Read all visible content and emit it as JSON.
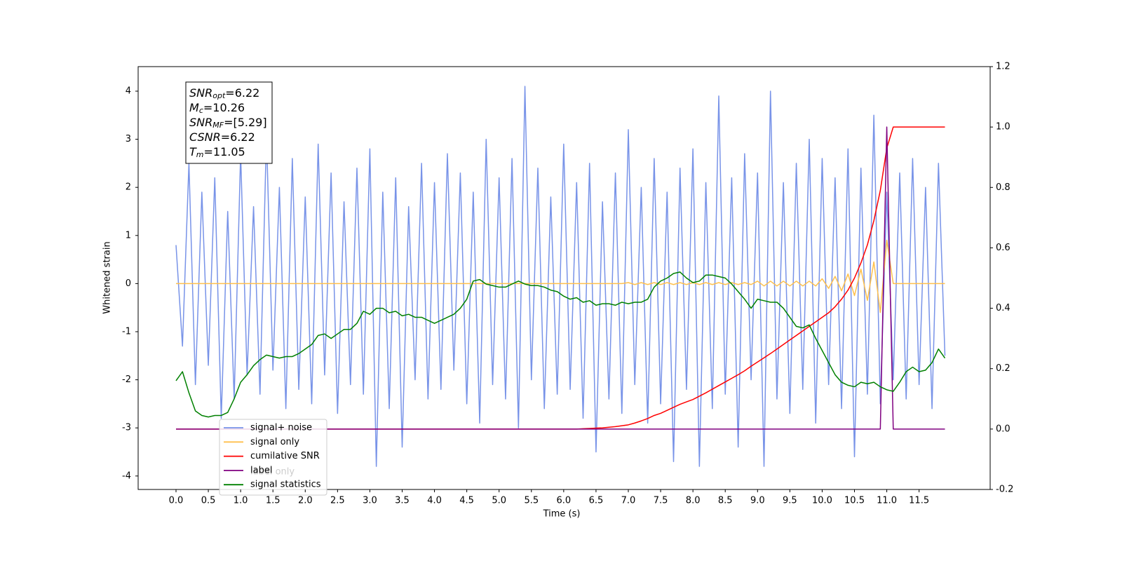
{
  "chart_data": {
    "type": "line",
    "xlabel": "Time (s)",
    "ylabel": "Whitened strain",
    "xlim": [
      -0.586,
      12.6
    ],
    "ylim": [
      -4.28,
      4.51
    ],
    "y2lim": [
      -0.2,
      1.2
    ],
    "xticks": [
      {
        "value": 0,
        "label": "0.0"
      },
      0.5,
      {
        "value": 1,
        "label": "1.0"
      },
      1.5,
      {
        "value": 2,
        "label": "2.0"
      },
      2.5,
      {
        "value": 3,
        "label": "3.0"
      },
      3.5,
      {
        "value": 4,
        "label": "4.0"
      },
      4.5,
      {
        "value": 5,
        "label": "5.0"
      },
      5.5,
      {
        "value": 6,
        "label": "6.0"
      },
      6.5,
      {
        "value": 7,
        "label": "7.0"
      },
      7.5,
      {
        "value": 8,
        "label": "8.0"
      },
      8.5,
      {
        "value": 9,
        "label": "9.0"
      },
      9.5,
      {
        "value": 10,
        "label": "10.0"
      },
      10.5,
      {
        "value": 11,
        "label": "11.0"
      },
      11.5
    ],
    "yticks": [
      -4,
      -3,
      -2,
      -1,
      0,
      1,
      2,
      3,
      4
    ],
    "y2ticks": [
      -0.2,
      {
        "value": 0,
        "label": "0.0"
      },
      0.2,
      0.4,
      0.6,
      0.8,
      {
        "value": 1,
        "label": "1.0"
      },
      1.2
    ],
    "x": [
      0,
      0.1,
      0.2,
      0.3,
      0.4,
      0.5,
      0.6,
      0.7,
      0.8,
      0.9,
      1,
      1.1,
      1.2,
      1.3,
      1.4,
      1.5,
      1.6,
      1.7,
      1.8,
      1.9,
      2,
      2.1,
      2.2,
      2.3,
      2.4,
      2.5,
      2.6,
      2.7,
      2.8,
      2.9,
      3,
      3.1,
      3.2,
      3.3,
      3.4,
      3.5,
      3.6,
      3.7,
      3.8,
      3.9,
      4,
      4.1,
      4.2,
      4.3,
      4.4,
      4.5,
      4.6,
      4.7,
      4.8,
      4.9,
      5,
      5.1,
      5.2,
      5.3,
      5.4,
      5.5,
      5.6,
      5.7,
      5.8,
      5.9,
      6,
      6.1,
      6.2,
      6.3,
      6.4,
      6.5,
      6.6,
      6.7,
      6.8,
      6.9,
      7,
      7.1,
      7.2,
      7.3,
      7.4,
      7.5,
      7.6,
      7.7,
      7.8,
      7.9,
      8,
      8.1,
      8.2,
      8.3,
      8.4,
      8.5,
      8.6,
      8.7,
      8.8,
      8.9,
      9,
      9.1,
      9.2,
      9.3,
      9.4,
      9.5,
      9.6,
      9.7,
      9.8,
      9.9,
      10,
      10.1,
      10.2,
      10.3,
      10.4,
      10.5,
      10.6,
      10.7,
      10.8,
      10.9,
      11,
      11.1,
      11.2,
      11.3,
      11.4,
      11.5,
      11.6,
      11.7,
      11.8,
      11.9
    ],
    "series": [
      {
        "name": "signal+ noise",
        "color": "#7893e8",
        "axis": "y",
        "values": [
          0.8,
          -1.3,
          2.5,
          -2.1,
          1.9,
          -1.7,
          2.2,
          -2.8,
          1.5,
          -2.4,
          2.7,
          -1.9,
          1.6,
          -2.3,
          3.1,
          -1.8,
          2.0,
          -2.6,
          2.6,
          -2.2,
          1.8,
          -2.5,
          2.9,
          -1.9,
          2.3,
          -2.7,
          1.7,
          -2.1,
          2.4,
          -2.3,
          2.8,
          -3.8,
          1.9,
          -2.6,
          2.2,
          -3.4,
          1.6,
          -2.0,
          2.5,
          -2.4,
          2.1,
          -2.2,
          2.7,
          -1.8,
          2.3,
          -2.5,
          1.9,
          -2.9,
          3.0,
          -2.1,
          2.2,
          -2.4,
          2.6,
          -3.0,
          4.1,
          -2.0,
          2.4,
          -2.6,
          1.8,
          -2.3,
          2.9,
          -2.2,
          2.1,
          -2.8,
          2.5,
          -3.5,
          1.7,
          -2.4,
          2.3,
          -2.7,
          3.2,
          -2.1,
          2.0,
          -2.9,
          2.6,
          -2.5,
          1.9,
          -3.7,
          2.4,
          -2.2,
          2.8,
          -3.8,
          2.1,
          -2.6,
          3.9,
          -2.3,
          2.2,
          -3.4,
          2.7,
          -2.0,
          2.3,
          -3.8,
          4.0,
          -2.4,
          2.1,
          -2.7,
          2.5,
          -2.2,
          3.0,
          -2.9,
          2.6,
          -2.1,
          2.2,
          -2.6,
          2.8,
          -3.6,
          2.4,
          -2.3,
          3.5,
          -2.5,
          1.9,
          -2.0,
          2.3,
          -2.4,
          2.6,
          -2.1,
          2.0,
          -2.6,
          2.5,
          -1.5
        ]
      },
      {
        "name": "signal only",
        "color": "#ffc04d",
        "axis": "y",
        "values": [
          0,
          0,
          0,
          0,
          0,
          0,
          0,
          0,
          0,
          0,
          0,
          0,
          0,
          0,
          0,
          0,
          0,
          0,
          0,
          0,
          0,
          0,
          0,
          0,
          0,
          0,
          0,
          0,
          0,
          0,
          0,
          0,
          0,
          0,
          0,
          0,
          0,
          0,
          0,
          0,
          0,
          0,
          0,
          0,
          0,
          0,
          0,
          0,
          0,
          0,
          0,
          0,
          0,
          0,
          0,
          0,
          0,
          0,
          0,
          0,
          0,
          0,
          0,
          0,
          0,
          0,
          0,
          0,
          0,
          0,
          0.02,
          -0.02,
          0.02,
          -0.02,
          0.02,
          -0.02,
          0.02,
          -0.02,
          0.02,
          -0.02,
          0.02,
          -0.02,
          0.02,
          -0.02,
          0.02,
          -0.02,
          0.02,
          -0.02,
          0.02,
          -0.02,
          0.05,
          -0.05,
          0.05,
          -0.05,
          0.05,
          -0.05,
          0.05,
          -0.05,
          0.05,
          -0.05,
          0.1,
          -0.1,
          0.15,
          -0.15,
          0.2,
          -0.25,
          0.3,
          -0.35,
          0.45,
          -0.6,
          0.9,
          0,
          0,
          0,
          0,
          0,
          0,
          0,
          0,
          0
        ]
      },
      {
        "name": "cumilative SNR",
        "color": "#ff0000",
        "axis": "y2",
        "values": [
          0,
          0,
          0,
          0,
          0,
          0,
          0,
          0,
          0,
          0,
          0,
          0,
          0,
          0,
          0,
          0,
          0,
          0,
          0,
          0,
          0,
          0,
          0,
          0,
          0,
          0,
          0,
          0,
          0,
          0,
          0,
          0,
          0,
          0,
          0,
          0,
          0,
          0,
          0,
          0,
          0,
          0,
          0,
          0,
          0,
          0,
          0,
          0,
          0,
          0,
          0,
          0,
          0,
          0,
          0,
          0,
          0,
          0,
          0,
          0,
          0,
          0,
          0,
          0.001,
          0.002,
          0.003,
          0.004,
          0.006,
          0.008,
          0.011,
          0.014,
          0.02,
          0.027,
          0.035,
          0.045,
          0.052,
          0.062,
          0.072,
          0.082,
          0.09,
          0.098,
          0.109,
          0.12,
          0.132,
          0.144,
          0.156,
          0.168,
          0.18,
          0.193,
          0.208,
          0.222,
          0.236,
          0.25,
          0.265,
          0.28,
          0.295,
          0.31,
          0.325,
          0.34,
          0.355,
          0.37,
          0.385,
          0.405,
          0.43,
          0.46,
          0.5,
          0.55,
          0.61,
          0.69,
          0.79,
          0.93,
          1,
          1,
          1,
          1,
          1,
          1,
          1,
          1,
          1
        ]
      },
      {
        "name": "label",
        "color": "#800080",
        "axis": "y2",
        "values": [
          0,
          0,
          0,
          0,
          0,
          0,
          0,
          0,
          0,
          0,
          0,
          0,
          0,
          0,
          0,
          0,
          0,
          0,
          0,
          0,
          0,
          0,
          0,
          0,
          0,
          0,
          0,
          0,
          0,
          0,
          0,
          0,
          0,
          0,
          0,
          0,
          0,
          0,
          0,
          0,
          0,
          0,
          0,
          0,
          0,
          0,
          0,
          0,
          0,
          0,
          0,
          0,
          0,
          0,
          0,
          0,
          0,
          0,
          0,
          0,
          0,
          0,
          0,
          0,
          0,
          0,
          0,
          0,
          0,
          0,
          0,
          0,
          0,
          0,
          0,
          0,
          0,
          0,
          0,
          0,
          0,
          0,
          0,
          0,
          0,
          0,
          0,
          0,
          0,
          0,
          0,
          0,
          0,
          0,
          0,
          0,
          0,
          0,
          0,
          0,
          0,
          0,
          0,
          0,
          0,
          0,
          0,
          0,
          0,
          0,
          1,
          0,
          0,
          0,
          0,
          0,
          0,
          0,
          0,
          0
        ]
      },
      {
        "name": "signal statistics",
        "color": "#008000",
        "axis": "y2",
        "values": [
          0.16,
          0.19,
          0.12,
          0.06,
          0.045,
          0.04,
          0.045,
          0.045,
          0.055,
          0.1,
          0.155,
          0.18,
          0.21,
          0.23,
          0.245,
          0.24,
          0.235,
          0.24,
          0.24,
          0.25,
          0.265,
          0.28,
          0.31,
          0.315,
          0.3,
          0.315,
          0.33,
          0.33,
          0.35,
          0.39,
          0.38,
          0.4,
          0.4,
          0.385,
          0.39,
          0.375,
          0.38,
          0.37,
          0.37,
          0.36,
          0.35,
          0.36,
          0.37,
          0.38,
          0.4,
          0.43,
          0.49,
          0.495,
          0.48,
          0.475,
          0.47,
          0.47,
          0.48,
          0.49,
          0.48,
          0.475,
          0.475,
          0.47,
          0.46,
          0.455,
          0.44,
          0.43,
          0.435,
          0.42,
          0.425,
          0.41,
          0.415,
          0.415,
          0.41,
          0.42,
          0.415,
          0.42,
          0.42,
          0.43,
          0.47,
          0.49,
          0.5,
          0.515,
          0.52,
          0.5,
          0.485,
          0.49,
          0.51,
          0.51,
          0.505,
          0.5,
          0.48,
          0.455,
          0.43,
          0.4,
          0.43,
          0.425,
          0.42,
          0.42,
          0.4,
          0.37,
          0.34,
          0.335,
          0.345,
          0.3,
          0.26,
          0.22,
          0.18,
          0.155,
          0.145,
          0.14,
          0.155,
          0.15,
          0.155,
          0.14,
          0.13,
          0.125,
          0.155,
          0.19,
          0.205,
          0.19,
          0.195,
          0.22,
          0.265,
          0.235
        ]
      }
    ],
    "legend_hidden_entry": "label only",
    "annotation": [
      {
        "text": "SNR",
        "sub": "opt",
        "rest": "=6.22"
      },
      {
        "text": "M",
        "sub": "c",
        "rest": "=10.26"
      },
      {
        "text": "SNR",
        "sub": "MF",
        "rest": "=[5.29]"
      },
      {
        "text": "CSNR",
        "rest": "=6.22"
      },
      {
        "text": "T",
        "sub": "m",
        "rest": "=11.05"
      }
    ]
  }
}
